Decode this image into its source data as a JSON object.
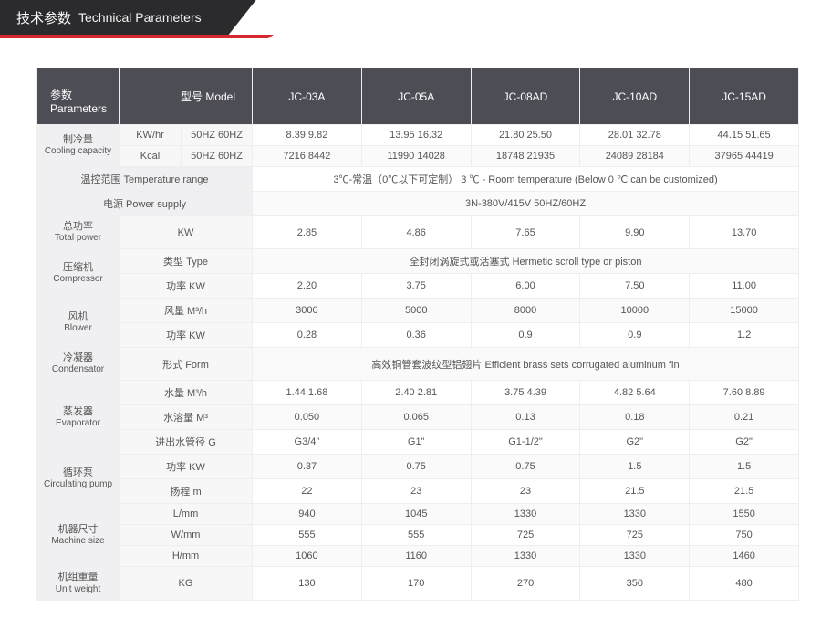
{
  "title": {
    "cn": "技术参数",
    "en": "Technical Parameters"
  },
  "header": {
    "param_cn": "参数",
    "param_en": "Parameters",
    "model_cn": "型号",
    "model_en": "Model",
    "models": [
      "JC-03A",
      "JC-05A",
      "JC-08AD",
      "JC-10AD",
      "JC-15AD"
    ]
  },
  "rows": [
    {
      "group": {
        "cn": "制冷量",
        "en": "Cooling capacity"
      },
      "subs": [
        {
          "unit": "KW/hr",
          "sub2": "50HZ  60HZ",
          "vals": [
            "8.39 9.82",
            "13.95 16.32",
            "21.80 25.50",
            "28.01 32.78",
            "44.15 51.65"
          ]
        },
        {
          "unit": "Kcal",
          "sub2": "50HZ  60HZ",
          "vals": [
            "7216 8442",
            "11990 14028",
            "18748 21935",
            "24089 28184",
            "37965 44419"
          ]
        }
      ]
    },
    {
      "span_label": {
        "cn": "温控范围",
        "en": "Temperature range"
      },
      "span_val": "3℃-常温（0℃以下可定制）   3 ℃ - Room temperature (Below 0 ℃ can be customized)"
    },
    {
      "span_label": {
        "cn": "电源",
        "en": "Power supply"
      },
      "span_val": "3N-380V/415V 50HZ/60HZ"
    },
    {
      "group": {
        "cn": "总功率",
        "en": "Total power"
      },
      "subs": [
        {
          "unit": "KW",
          "vals": [
            "2.85",
            "4.86",
            "7.65",
            "9.90",
            "13.70"
          ]
        }
      ]
    },
    {
      "group": {
        "cn": "压缩机",
        "en": "Compressor"
      },
      "subs": [
        {
          "unit_cn": "类型",
          "unit_en": "Type",
          "span_val": "全封闭涡旋式或活塞式 Hermetic scroll type or piston"
        },
        {
          "unit_cn": "功率",
          "unit_en": "KW",
          "vals": [
            "2.20",
            "3.75",
            "6.00",
            "7.50",
            "11.00"
          ]
        }
      ]
    },
    {
      "group": {
        "cn": "风机",
        "en": "Blower"
      },
      "subs": [
        {
          "unit_cn": "风量",
          "unit_en": "M³/h",
          "vals": [
            "3000",
            "5000",
            "8000",
            "10000",
            "15000"
          ]
        },
        {
          "unit_cn": "功率",
          "unit_en": "KW",
          "vals": [
            "0.28",
            "0.36",
            "0.9",
            "0.9",
            "1.2"
          ]
        }
      ]
    },
    {
      "group": {
        "cn": "冷凝器",
        "en": "Condensator"
      },
      "subs": [
        {
          "unit_cn": "形式",
          "unit_en": "Form",
          "span_val": "高效铜管套波纹型铝翅片 Efficient brass sets corrugated aluminum fin"
        }
      ]
    },
    {
      "group": {
        "cn": "蒸发器",
        "en": "Evaporator"
      },
      "subs": [
        {
          "unit_cn": "水量",
          "unit_en": "M³/h",
          "vals": [
            "1.44 1.68",
            "2.40 2.81",
            "3.75 4.39",
            "4.82 5.64",
            "7.60 8.89"
          ]
        },
        {
          "unit_cn": "水溶量",
          "unit_en": "M³",
          "vals": [
            "0.050",
            "0.065",
            "0.13",
            "0.18",
            "0.21"
          ]
        },
        {
          "unit_cn": "进出水管径",
          "unit_en": "G",
          "vals": [
            "G3/4\"",
            "G1\"",
            "G1-1/2\"",
            "G2\"",
            "G2\""
          ]
        }
      ]
    },
    {
      "group": {
        "cn": "循环泵",
        "en": "Circulating pump"
      },
      "subs": [
        {
          "unit_cn": "功率",
          "unit_en": "KW",
          "vals": [
            "0.37",
            "0.75",
            "0.75",
            "1.5",
            "1.5"
          ]
        },
        {
          "unit_cn": "扬程",
          "unit_en": "m",
          "vals": [
            "22",
            "23",
            "23",
            "21.5",
            "21.5"
          ]
        }
      ]
    },
    {
      "group": {
        "cn": "机器尺寸",
        "en": "Machine size"
      },
      "subs": [
        {
          "unit": "L/mm",
          "vals": [
            "940",
            "1045",
            "1330",
            "1330",
            "1550"
          ]
        },
        {
          "unit": "W/mm",
          "vals": [
            "555",
            "555",
            "725",
            "725",
            "750"
          ]
        },
        {
          "unit": "H/mm",
          "vals": [
            "1060",
            "1160",
            "1330",
            "1330",
            "1460"
          ]
        }
      ]
    },
    {
      "group": {
        "cn": "机组重量",
        "en": "Unit weight"
      },
      "subs": [
        {
          "unit": "KG",
          "vals": [
            "130",
            "170",
            "270",
            "350",
            "480"
          ]
        }
      ]
    }
  ]
}
